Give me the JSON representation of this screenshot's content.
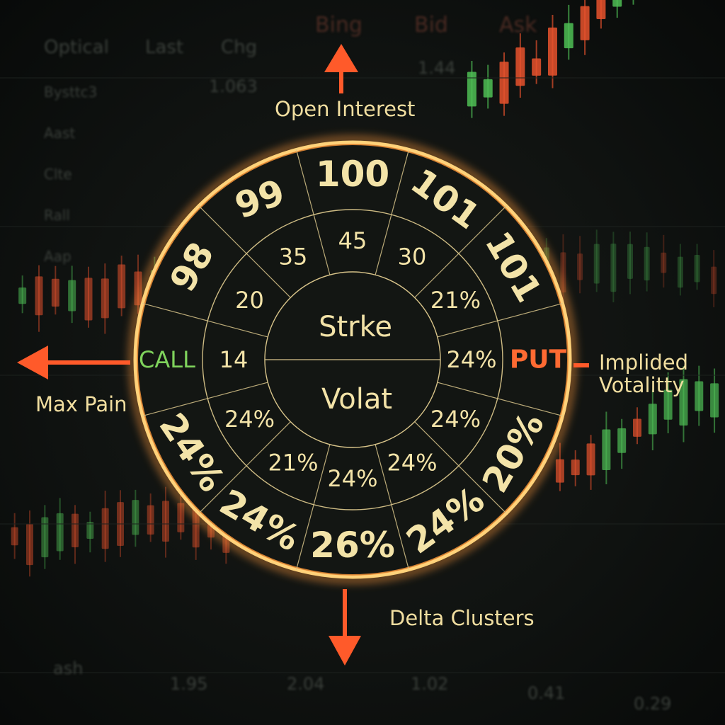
{
  "background": {
    "header_labels": [
      "Optical",
      "Last",
      "Chg",
      "Bing",
      "Bid",
      "Ask"
    ],
    "row_labels": [
      "Bysttc3",
      "Aast",
      "Clte",
      "Rall",
      "Aap"
    ],
    "values": [
      "1.063",
      "1.44",
      "1.95",
      "2.04",
      "1.02",
      "0.41",
      "0.29",
      "ash"
    ]
  },
  "wheel": {
    "outer_ring": [
      {
        "label": "100",
        "rotate": 0
      },
      {
        "label": "101",
        "rotate": 36
      },
      {
        "label": "101",
        "rotate": 60
      },
      {
        "label": "PUT",
        "rotate": 0,
        "accent": "put"
      },
      {
        "label": "20%",
        "rotate": -60
      },
      {
        "label": "24%",
        "rotate": -36
      },
      {
        "label": "26%",
        "rotate": 0
      },
      {
        "label": "24%",
        "rotate": 30
      },
      {
        "label": "24%",
        "rotate": 56
      },
      {
        "label": "CALL",
        "rotate": 0,
        "accent": "call"
      },
      {
        "label": "98",
        "rotate": -60
      },
      {
        "label": "99",
        "rotate": -20
      }
    ],
    "inner_ring": [
      {
        "label": "45"
      },
      {
        "label": "30"
      },
      {
        "label": "21%"
      },
      {
        "label": "24%"
      },
      {
        "label": "24%"
      },
      {
        "label": "24%"
      },
      {
        "label": "24%"
      },
      {
        "label": "21%"
      },
      {
        "label": "24%"
      },
      {
        "label": "14"
      },
      {
        "label": "20"
      },
      {
        "label": "35"
      }
    ],
    "center_top": "Strke",
    "center_bottom": "Volat"
  },
  "callouts": {
    "top": "Open Interest",
    "right": "Implided\nVotalitty",
    "left": "Max Pain",
    "bottom": "Delta Clusters"
  },
  "colors": {
    "ring": "#ff9a3c",
    "arrow": "#ff5a2a",
    "text": "#f3e3a8",
    "call": "#7fd35c",
    "put": "#ff6a32",
    "bull": "#4fbf55",
    "bear": "#e8522d"
  }
}
